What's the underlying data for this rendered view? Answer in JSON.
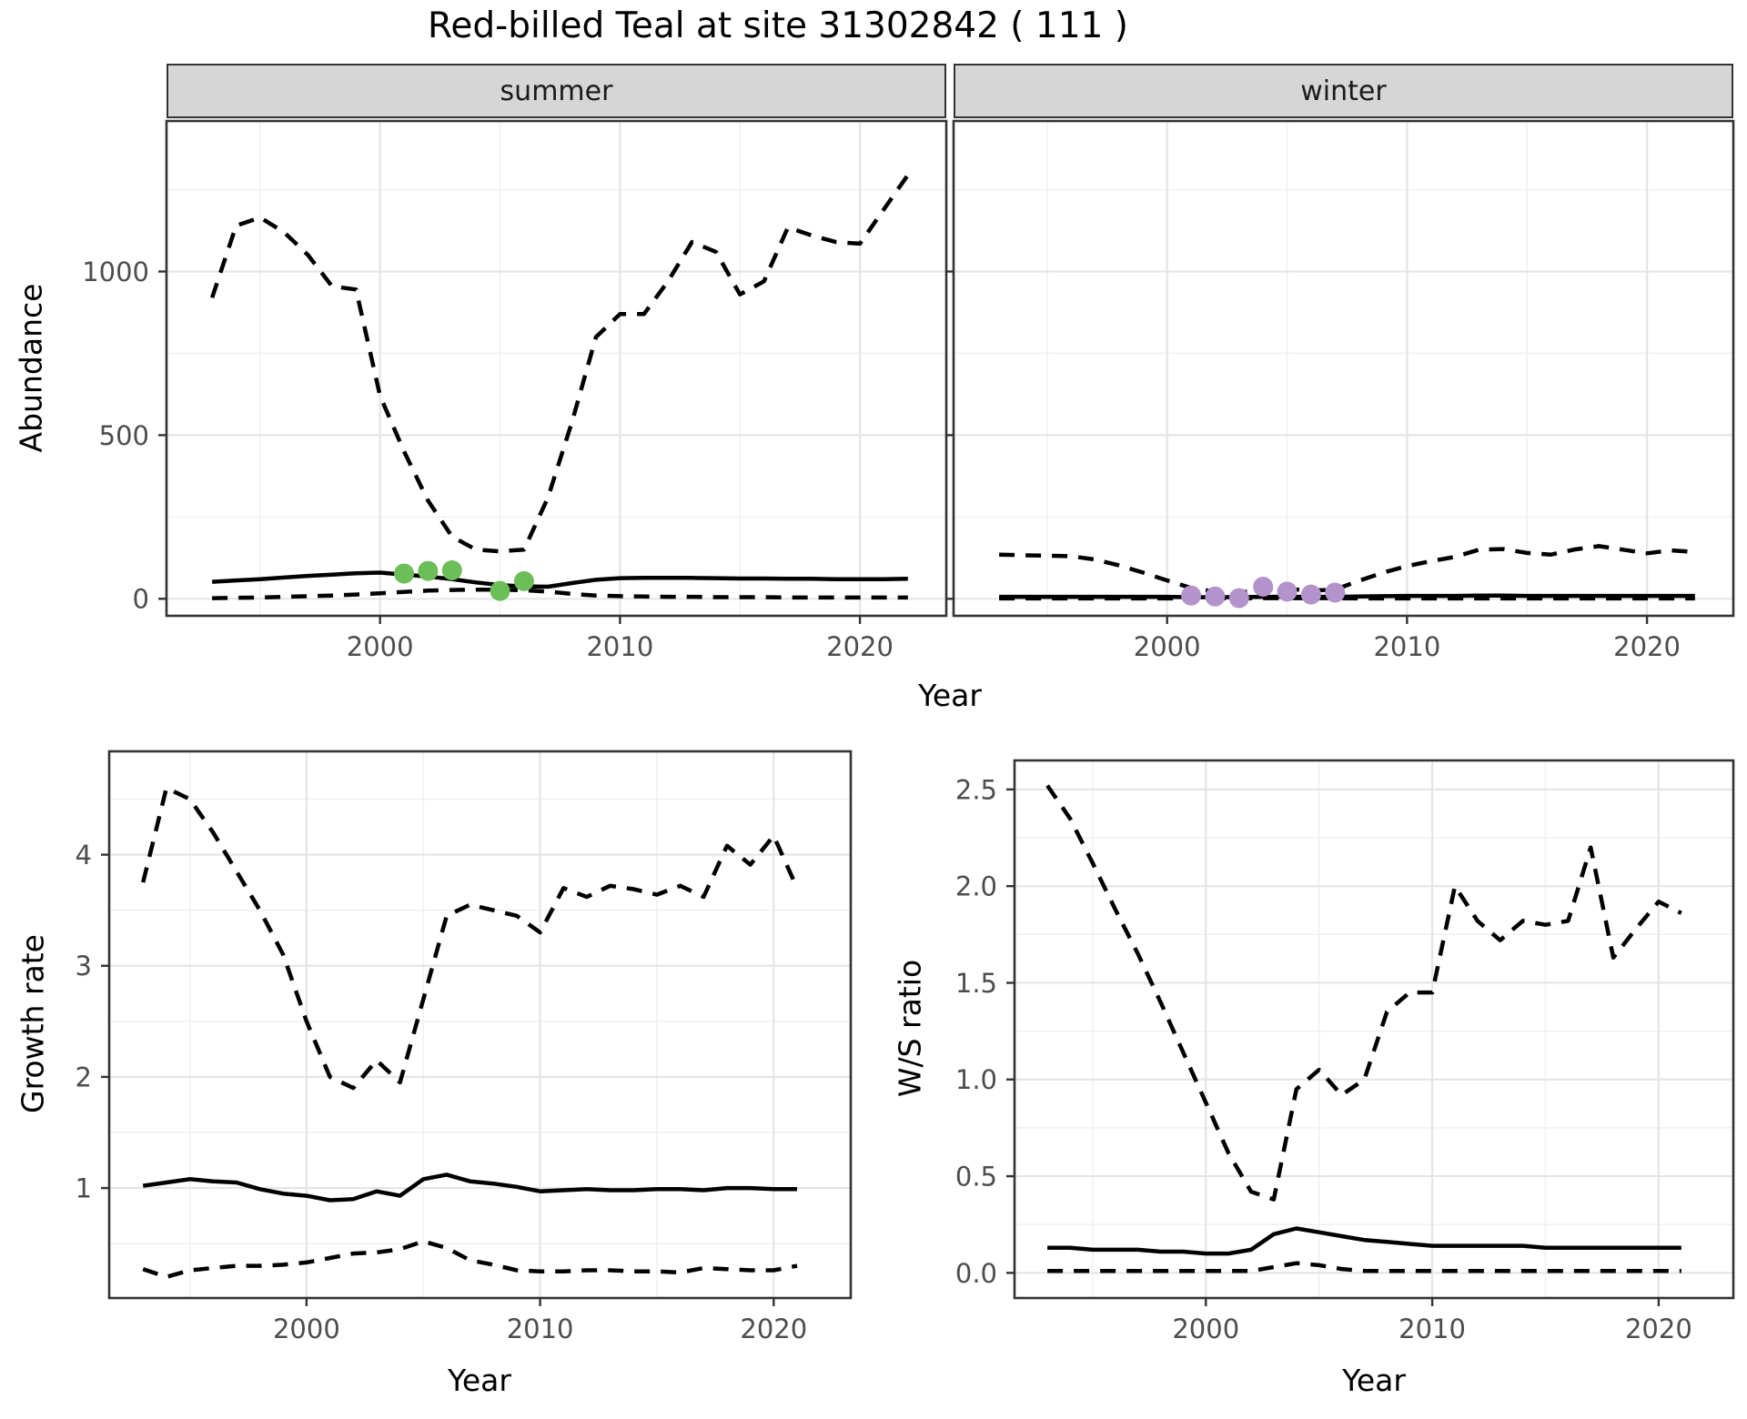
{
  "title": "Red-billed Teal at site 31302842 ( 111 )",
  "facet_labels": {
    "summer": "summer",
    "winter": "winter"
  },
  "axis_titles": {
    "abundance": "Abundance",
    "year_top": "Year",
    "growth": "Growth rate",
    "year_growth": "Year",
    "ws": "W/S ratio",
    "year_ws": "Year"
  },
  "colors": {
    "line": "#000000",
    "panel_border": "#333333",
    "grid_major": "#e5e5e5",
    "grid_minor": "#f1f1f1",
    "tick_label": "#4d4d4d",
    "strip_bg": "#d6d6d6",
    "summer_points": "#6cbe58",
    "winter_points": "#b492cc"
  },
  "chart_data": [
    {
      "id": "abundance_summer",
      "type": "line",
      "facet": "summer",
      "xlabel": "Year",
      "ylabel": "Abundance",
      "grid": true,
      "legend": "none",
      "x": [
        1993,
        1994,
        1995,
        1996,
        1997,
        1998,
        1999,
        2000,
        2001,
        2002,
        2003,
        2004,
        2005,
        2006,
        2007,
        2008,
        2009,
        2010,
        2011,
        2012,
        2013,
        2014,
        2015,
        2016,
        2017,
        2018,
        2019,
        2020,
        2021,
        2022
      ],
      "series": [
        {
          "name": "upper-ci",
          "style": "dashed",
          "values": [
            920,
            1140,
            1165,
            1120,
            1050,
            955,
            945,
            620,
            450,
            300,
            190,
            150,
            145,
            150,
            310,
            540,
            800,
            870,
            870,
            970,
            1090,
            1060,
            930,
            970,
            1135,
            1110,
            1090,
            1085,
            1190,
            1295
          ]
        },
        {
          "name": "median",
          "style": "solid",
          "values": [
            52,
            56,
            60,
            65,
            70,
            74,
            78,
            80,
            74,
            68,
            60,
            50,
            42,
            38,
            37,
            48,
            58,
            63,
            64,
            64,
            64,
            63,
            62,
            62,
            61,
            61,
            60,
            60,
            60,
            61
          ]
        },
        {
          "name": "lower-ci",
          "style": "dashed",
          "values": [
            2,
            3,
            4,
            6,
            8,
            10,
            13,
            17,
            21,
            25,
            27,
            28,
            28,
            26,
            22,
            15,
            10,
            8,
            7,
            6,
            6,
            5,
            5,
            5,
            4,
            4,
            4,
            4,
            4,
            4
          ]
        }
      ],
      "points": {
        "name": "observed-counts-summer",
        "x": [
          2001,
          2002,
          2003,
          2005,
          2006
        ],
        "y": [
          77,
          85,
          87,
          24,
          54
        ],
        "color": "#6cbe58"
      },
      "xlim": [
        1991.1,
        2023.6
      ],
      "ylim": [
        -52,
        1460
      ],
      "xticks": {
        "values": [
          2000,
          2010,
          2020
        ],
        "labels": [
          "2000",
          "2010",
          "2020"
        ],
        "minor": [
          1995,
          2005,
          2015
        ]
      },
      "yticks": {
        "values": [
          0,
          500,
          1000
        ],
        "labels": [
          "0",
          "500",
          "1000"
        ],
        "minor": [
          250,
          750,
          1250
        ]
      }
    },
    {
      "id": "abundance_winter",
      "type": "line",
      "facet": "winter",
      "xlabel": "Year",
      "ylabel": "Abundance",
      "grid": true,
      "legend": "none",
      "x": [
        1993,
        1994,
        1995,
        1996,
        1997,
        1998,
        1999,
        2000,
        2001,
        2002,
        2003,
        2004,
        2005,
        2006,
        2007,
        2008,
        2009,
        2010,
        2011,
        2012,
        2013,
        2014,
        2015,
        2016,
        2017,
        2018,
        2019,
        2020,
        2021,
        2022
      ],
      "series": [
        {
          "name": "upper-ci",
          "style": "dashed",
          "values": [
            135,
            133,
            132,
            130,
            120,
            102,
            80,
            56,
            33,
            22,
            16,
            35,
            30,
            25,
            28,
            55,
            80,
            100,
            115,
            128,
            150,
            152,
            140,
            135,
            151,
            161,
            150,
            139,
            148,
            143
          ]
        },
        {
          "name": "median",
          "style": "solid",
          "values": [
            6,
            6,
            6,
            6,
            6,
            6,
            6,
            6,
            5,
            5,
            5,
            6,
            6,
            6,
            6,
            7,
            8,
            9,
            9,
            9,
            10,
            10,
            9,
            9,
            9,
            9,
            9,
            9,
            9,
            9
          ]
        },
        {
          "name": "lower-ci",
          "style": "dashed",
          "values": [
            1,
            1,
            1,
            1,
            1,
            1,
            1,
            1,
            1,
            1,
            1,
            2,
            2,
            2,
            2,
            1,
            1,
            1,
            1,
            1,
            1,
            1,
            1,
            1,
            1,
            1,
            1,
            1,
            1,
            1
          ]
        }
      ],
      "points": {
        "name": "observed-counts-winter",
        "x": [
          2001,
          2002,
          2003,
          2004,
          2005,
          2006,
          2007
        ],
        "y": [
          10,
          7,
          2,
          37,
          22,
          13,
          19
        ],
        "color": "#b492cc"
      },
      "xlim": [
        1991.1,
        2023.6
      ],
      "ylim": [
        -52,
        1460
      ],
      "xticks": {
        "values": [
          2000,
          2010,
          2020
        ],
        "labels": [
          "2000",
          "2010",
          "2020"
        ],
        "minor": [
          1995,
          2005,
          2015
        ]
      },
      "yticks": {
        "values": [
          0,
          500,
          1000
        ],
        "labels": [
          "0",
          "500",
          "1000"
        ],
        "minor": [
          250,
          750,
          1250
        ]
      }
    },
    {
      "id": "growth_rate",
      "type": "line",
      "facet": null,
      "xlabel": "Year",
      "ylabel": "Growth rate",
      "grid": true,
      "legend": "none",
      "x": [
        1993,
        1994,
        1995,
        1996,
        1997,
        1998,
        1999,
        2000,
        2001,
        2002,
        2003,
        2004,
        2005,
        2006,
        2007,
        2008,
        2009,
        2010,
        2011,
        2012,
        2013,
        2014,
        2015,
        2016,
        2017,
        2018,
        2019,
        2020,
        2021
      ],
      "series": [
        {
          "name": "upper-ci",
          "style": "dashed",
          "values": [
            3.75,
            4.6,
            4.5,
            4.2,
            3.85,
            3.5,
            3.1,
            2.5,
            2.0,
            1.9,
            2.15,
            1.95,
            2.7,
            3.45,
            3.55,
            3.5,
            3.45,
            3.3,
            3.7,
            3.62,
            3.72,
            3.69,
            3.64,
            3.72,
            3.62,
            4.08,
            3.91,
            4.17,
            3.7
          ]
        },
        {
          "name": "median",
          "style": "solid",
          "values": [
            1.02,
            1.05,
            1.08,
            1.06,
            1.05,
            0.99,
            0.95,
            0.93,
            0.89,
            0.9,
            0.97,
            0.93,
            1.08,
            1.12,
            1.06,
            1.04,
            1.01,
            0.97,
            0.98,
            0.99,
            0.98,
            0.98,
            0.99,
            0.99,
            0.98,
            1.0,
            1.0,
            0.99,
            0.99
          ]
        },
        {
          "name": "lower-ci",
          "style": "dashed",
          "values": [
            0.27,
            0.2,
            0.26,
            0.28,
            0.3,
            0.3,
            0.31,
            0.33,
            0.37,
            0.41,
            0.42,
            0.45,
            0.52,
            0.46,
            0.35,
            0.31,
            0.26,
            0.25,
            0.25,
            0.26,
            0.26,
            0.25,
            0.25,
            0.24,
            0.28,
            0.27,
            0.26,
            0.26,
            0.3
          ]
        }
      ],
      "points": null,
      "xlim": [
        1991.55,
        2023.3
      ],
      "ylim": [
        0.01,
        4.93
      ],
      "xticks": {
        "values": [
          2000,
          2010,
          2020
        ],
        "labels": [
          "2000",
          "2010",
          "2020"
        ],
        "minor": [
          1995,
          2005,
          2015
        ]
      },
      "yticks": {
        "values": [
          1,
          2,
          3,
          4
        ],
        "labels": [
          "1",
          "2",
          "3",
          "4"
        ],
        "minor": [
          0.5,
          1.5,
          2.5,
          3.5,
          4.5
        ]
      }
    },
    {
      "id": "ws_ratio",
      "type": "line",
      "facet": null,
      "xlabel": "Year",
      "ylabel": "W/S ratio",
      "grid": true,
      "legend": "none",
      "x": [
        1993,
        1994,
        1995,
        1996,
        1997,
        1998,
        1999,
        2000,
        2001,
        2002,
        2003,
        2004,
        2005,
        2006,
        2007,
        2008,
        2009,
        2010,
        2011,
        2012,
        2013,
        2014,
        2015,
        2016,
        2017,
        2018,
        2019,
        2020,
        2021
      ],
      "series": [
        {
          "name": "upper-ci",
          "style": "dashed",
          "values": [
            2.52,
            2.35,
            2.12,
            1.88,
            1.65,
            1.4,
            1.14,
            0.88,
            0.62,
            0.42,
            0.38,
            0.95,
            1.05,
            0.92,
            1.0,
            1.35,
            1.45,
            1.45,
            2.0,
            1.82,
            1.72,
            1.82,
            1.8,
            1.82,
            2.2,
            1.63,
            1.78,
            1.92,
            1.86
          ]
        },
        {
          "name": "median",
          "style": "solid",
          "values": [
            0.13,
            0.13,
            0.12,
            0.12,
            0.12,
            0.11,
            0.11,
            0.1,
            0.1,
            0.12,
            0.2,
            0.23,
            0.21,
            0.19,
            0.17,
            0.16,
            0.15,
            0.14,
            0.14,
            0.14,
            0.14,
            0.14,
            0.13,
            0.13,
            0.13,
            0.13,
            0.13,
            0.13,
            0.13
          ]
        },
        {
          "name": "lower-ci",
          "style": "dashed",
          "values": [
            0.01,
            0.01,
            0.01,
            0.01,
            0.01,
            0.01,
            0.01,
            0.01,
            0.01,
            0.01,
            0.03,
            0.05,
            0.04,
            0.02,
            0.01,
            0.01,
            0.01,
            0.01,
            0.01,
            0.01,
            0.01,
            0.01,
            0.01,
            0.01,
            0.01,
            0.01,
            0.01,
            0.01,
            0.01
          ]
        }
      ],
      "points": null,
      "xlim": [
        1991.55,
        2023.3
      ],
      "ylim": [
        -0.13,
        2.65
      ],
      "xticks": {
        "values": [
          2000,
          2010,
          2020
        ],
        "labels": [
          "2000",
          "2010",
          "2020"
        ],
        "minor": [
          1995,
          2005,
          2015
        ]
      },
      "yticks": {
        "values": [
          0.0,
          0.5,
          1.0,
          1.5,
          2.0,
          2.5
        ],
        "labels": [
          "0.0",
          "0.5",
          "1.0",
          "1.5",
          "2.0",
          "2.5"
        ],
        "minor": [
          0.25,
          0.75,
          1.25,
          1.75,
          2.25
        ]
      }
    }
  ]
}
